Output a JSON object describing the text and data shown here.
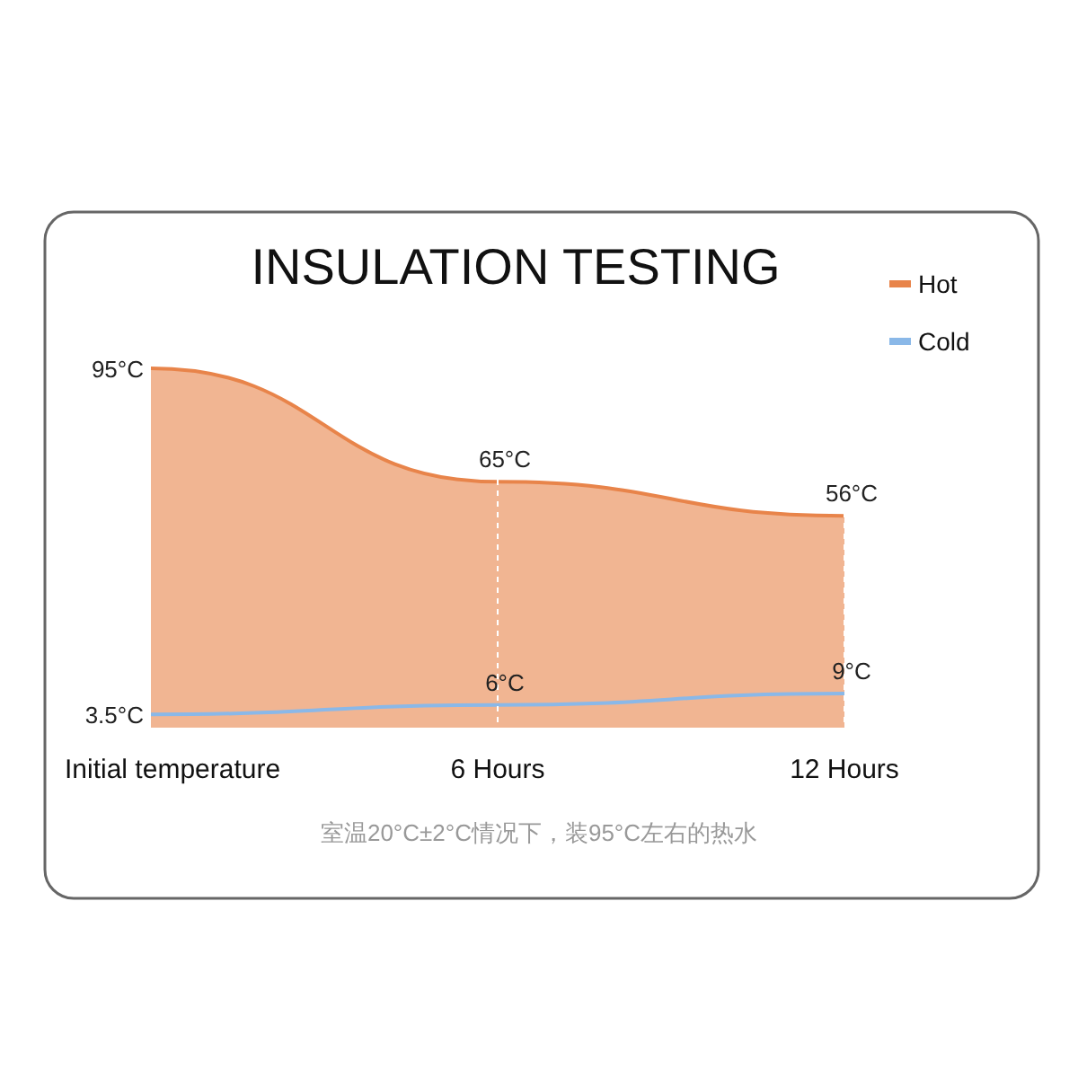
{
  "chart_data": {
    "type": "area",
    "title": "INSULATION TESTING",
    "categories": [
      "Initial temperature",
      "6 Hours",
      "12 Hours"
    ],
    "series": [
      {
        "name": "Hot",
        "color": "#e8844a",
        "values": [
          95,
          65,
          56
        ],
        "value_labels": [
          "95°C",
          "65°C",
          "56°C"
        ]
      },
      {
        "name": "Cold",
        "type": "line",
        "color": "#8ab8e8",
        "values": [
          3.5,
          6,
          9
        ],
        "value_labels": [
          "3.5°C",
          "6°C",
          "9°C"
        ]
      }
    ],
    "grid": "x",
    "legend": "top right",
    "annotations": [
      "室温20°C±2°C情况下，装95°C左右的热水"
    ]
  }
}
